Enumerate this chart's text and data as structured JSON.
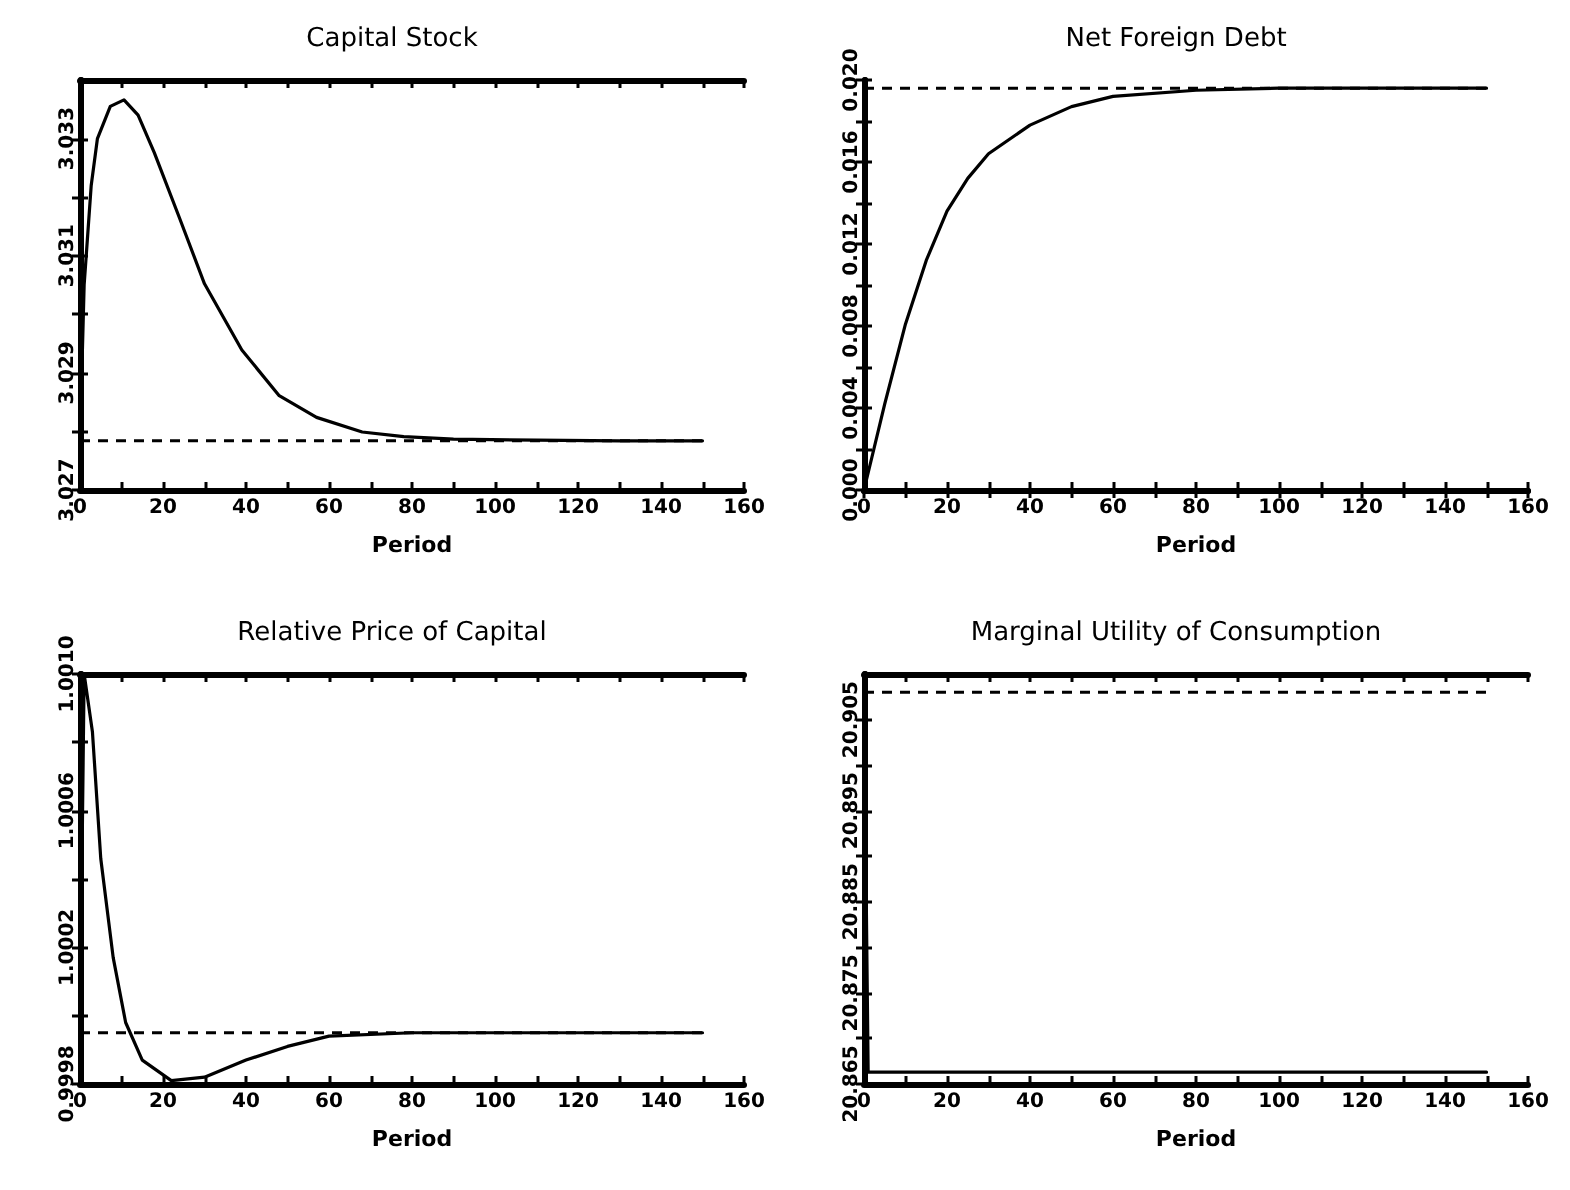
{
  "chart_data": [
    {
      "type": "line",
      "title": "Capital Stock",
      "xlabel": "Period",
      "color": "#000000",
      "line_style": "solid",
      "marker": "none",
      "grid": false,
      "legend": false,
      "x": [
        0,
        1,
        2.7,
        4.2,
        7.3,
        10.6,
        14,
        17.9,
        24,
        30,
        39,
        48,
        57,
        68,
        78,
        90,
        110,
        130,
        150
      ],
      "values": [
        3.02784,
        3.0305,
        3.0322,
        3.033,
        3.03355,
        3.03366,
        3.0334,
        3.03276,
        3.03164,
        3.03052,
        3.02939,
        3.02861,
        3.02824,
        3.02799,
        3.02791,
        3.02787,
        3.02785,
        3.02784,
        3.02784
      ],
      "xlim": [
        0,
        160
      ],
      "xticks": [
        0,
        20,
        40,
        60,
        80,
        100,
        120,
        140,
        160
      ],
      "ylim": [
        3.027,
        3.034
      ],
      "yticks": [
        3.027,
        3.029,
        3.031,
        3.033
      ],
      "ref_lines": [
        {
          "axis": "y",
          "value": 3.02784,
          "line_style": "dashed",
          "color": "#000000"
        }
      ]
    },
    {
      "type": "line",
      "title": "Net Foreign Debt",
      "xlabel": "Period",
      "color": "#000000",
      "line_style": "solid",
      "marker": "none",
      "grid": false,
      "legend": false,
      "x": [
        0,
        5,
        10,
        15,
        20,
        25,
        30,
        40,
        50,
        60,
        80,
        100,
        120,
        150
      ],
      "values": [
        0,
        0.0042,
        0.0081,
        0.0112,
        0.0136,
        0.0152,
        0.0164,
        0.0178,
        0.0187,
        0.0192,
        0.0195,
        0.0196,
        0.0196,
        0.0196
      ],
      "xlim": [
        0,
        160
      ],
      "xticks": [
        0,
        20,
        40,
        60,
        80,
        100,
        120,
        140,
        160
      ],
      "ylim": [
        0,
        0.02
      ],
      "yticks": [
        {
          "value": 0,
          "label": "0.000"
        },
        0.004,
        0.008,
        0.012,
        0.016,
        {
          "value": 0.02,
          "label": "0.020"
        }
      ],
      "ref_lines": [
        {
          "axis": "y",
          "value": 0.0196,
          "line_style": "dashed",
          "color": "#000000"
        }
      ]
    },
    {
      "type": "line",
      "title": "Relative Price of Capital",
      "xlabel": "Period",
      "color": "#000000",
      "line_style": "solid",
      "marker": "none",
      "grid": false,
      "legend": false,
      "x": [
        0,
        1,
        3,
        5,
        8,
        11,
        15,
        22,
        30,
        40,
        50,
        60,
        80,
        100,
        150
      ],
      "values": [
        0.99995,
        1.001,
        1.00083,
        1.00046,
        1.00017,
        0.99998,
        0.99987,
        0.99981,
        0.99982,
        0.99987,
        0.99991,
        0.99994,
        0.99995,
        0.99995,
        0.99995
      ],
      "xlim": [
        0,
        160
      ],
      "xticks": [
        0,
        20,
        40,
        60,
        80,
        100,
        120,
        140,
        160
      ],
      "ylim": [
        0.9998,
        1.001
      ],
      "yticks": [
        0.9998,
        1.0002,
        1.0006,
        {
          "value": 1.001,
          "label": "1.0010"
        }
      ],
      "ref_lines": [
        {
          "axis": "y",
          "value": 0.99995,
          "line_style": "dashed",
          "color": "#000000"
        }
      ]
    },
    {
      "type": "line",
      "title": "Marginal Utility of Consumption",
      "xlabel": "Period",
      "color": "#000000",
      "line_style": "solid",
      "marker": "none",
      "grid": false,
      "legend": false,
      "x": [
        0,
        1,
        150
      ],
      "values": [
        20.908,
        20.8663,
        20.8663
      ],
      "xlim": [
        0,
        160
      ],
      "xticks": [
        0,
        20,
        40,
        60,
        80,
        100,
        120,
        140,
        160
      ],
      "ylim": [
        20.865,
        20.91
      ],
      "yticks": [
        20.865,
        20.875,
        20.885,
        20.895,
        20.905
      ],
      "ref_lines": [
        {
          "axis": "y",
          "value": 20.908,
          "line_style": "dashed",
          "color": "#000000"
        }
      ]
    }
  ]
}
